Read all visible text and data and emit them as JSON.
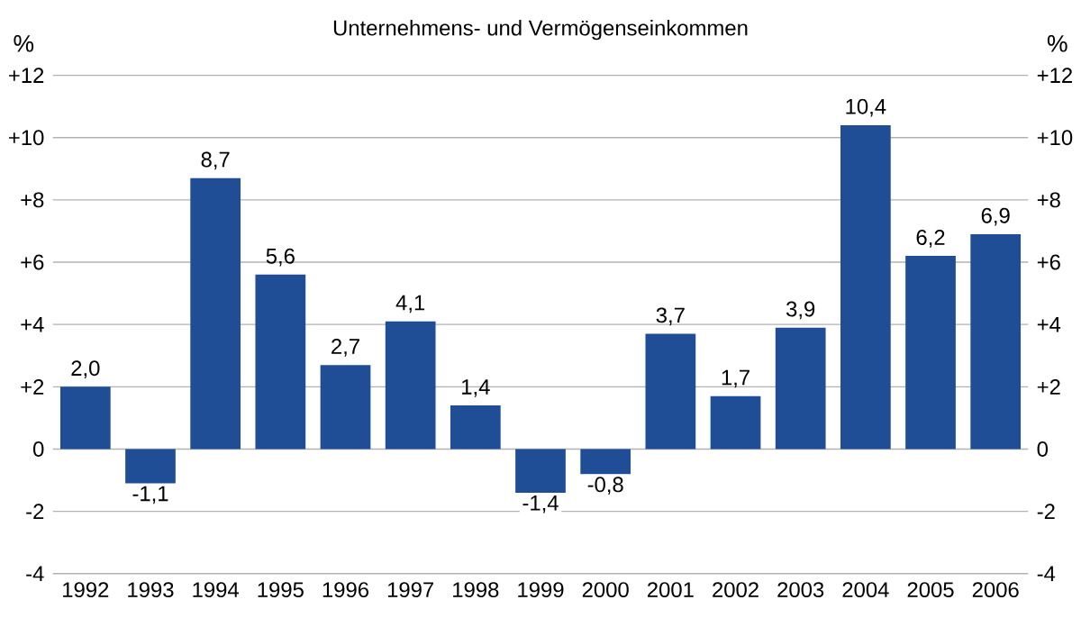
{
  "chart_data": {
    "type": "bar",
    "title": "Unternehmens- und Vermögenseinkommen",
    "ylabel": "%",
    "y2label": "%",
    "categories": [
      "1992",
      "1993",
      "1994",
      "1995",
      "1996",
      "1997",
      "1998",
      "1999",
      "2000",
      "2001",
      "2002",
      "2003",
      "2004",
      "2005",
      "2006"
    ],
    "values": [
      2.0,
      -1.1,
      8.7,
      5.6,
      2.7,
      4.1,
      1.4,
      -1.4,
      -0.8,
      3.7,
      1.7,
      3.9,
      10.4,
      6.2,
      6.9
    ],
    "value_labels": [
      "2,0",
      "-1,1",
      "8,7",
      "5,6",
      "2,7",
      "4,1",
      "1,4",
      "-1,4",
      "-0,8",
      "3,7",
      "1,7",
      "3,9",
      "10,4",
      "6,2",
      "6,9"
    ],
    "color": "#1f4e96",
    "ylim": [
      -4,
      12
    ],
    "yticks": [
      -4,
      -2,
      0,
      {
        "value": 2,
        "label": "+2"
      },
      {
        "value": 4,
        "label": "+4"
      },
      {
        "value": 6,
        "label": "+6"
      },
      {
        "value": 8,
        "label": "+8"
      },
      {
        "value": 10,
        "label": "+10"
      },
      {
        "value": 12,
        "label": "+12"
      }
    ],
    "y2lim": [
      -4,
      12
    ],
    "y2ticks": [
      -4,
      -2,
      0,
      {
        "value": 2,
        "label": "+2"
      },
      {
        "value": 4,
        "label": "+4"
      },
      {
        "value": 6,
        "label": "+6"
      },
      {
        "value": 8,
        "label": "+8"
      },
      {
        "value": 10,
        "label": "+10"
      },
      {
        "value": 12,
        "label": "+12"
      }
    ],
    "grid": "y"
  }
}
